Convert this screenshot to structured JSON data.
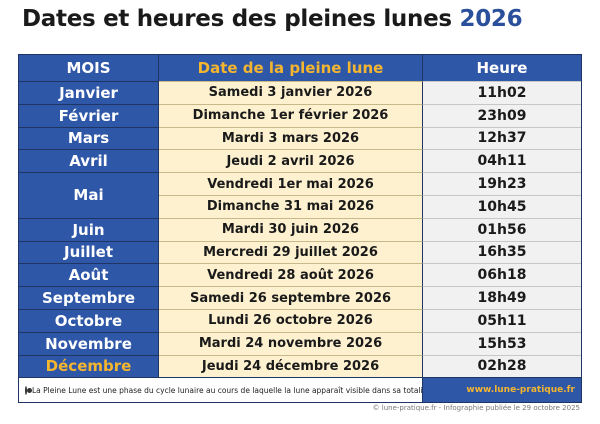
{
  "title": {
    "prefix": "Dates et heures des pleines lunes ",
    "year": "2026"
  },
  "table": {
    "headers": {
      "month": "MOIS",
      "date": "Date de la pleine lune",
      "time": "Heure"
    },
    "rows": [
      {
        "month": "Janvier",
        "date": "Samedi 3 janvier 2026",
        "time": "11h02"
      },
      {
        "month": "Février",
        "date": "Dimanche 1er février 2026",
        "time": "23h09"
      },
      {
        "month": "Mars",
        "date": "Mardi 3 mars 2026",
        "time": "12h37"
      },
      {
        "month": "Avril",
        "date": "Jeudi 2 avril 2026",
        "time": "04h11"
      },
      {
        "month": "Mai",
        "date": "Vendredi 1er mai 2026",
        "time": "19h23",
        "date2": "Dimanche 31 mai 2026",
        "time2": "10h45"
      },
      {
        "month": "Juin",
        "date": "Mardi 30 juin 2026",
        "time": "01h56"
      },
      {
        "month": "Juillet",
        "date": "Mercredi 29 juillet 2026",
        "time": "16h35"
      },
      {
        "month": "Août",
        "date": "Vendredi 28 août 2026",
        "time": "06h18"
      },
      {
        "month": "Septembre",
        "date": "Samedi 26 septembre 2026",
        "time": "18h49"
      },
      {
        "month": "Octobre",
        "date": "Lundi 26 octobre 2026",
        "time": "05h11"
      },
      {
        "month": "Novembre",
        "date": "Mardi 24 novembre 2026",
        "time": "15h53"
      },
      {
        "month": "Décembre",
        "date": "Jeudi 24 décembre 2026",
        "time": "02h28",
        "highlight": true
      }
    ]
  },
  "footer": {
    "note": "La Pleine Lune est une phase du cycle lunaire au cours de laquelle la lune apparaît visible dans sa totalité.",
    "site": "www.lune-pratique.fr"
  },
  "credit": "© lune-pratique.fr - Infographie publiée le 29 octobre 2025",
  "colors": {
    "header_blue": "#2f57a8",
    "accent_orange": "#f4b52f",
    "date_cream": "#fdf1cf",
    "time_grey": "#f1f1f1",
    "title_year_blue": "#2a4f9b"
  }
}
